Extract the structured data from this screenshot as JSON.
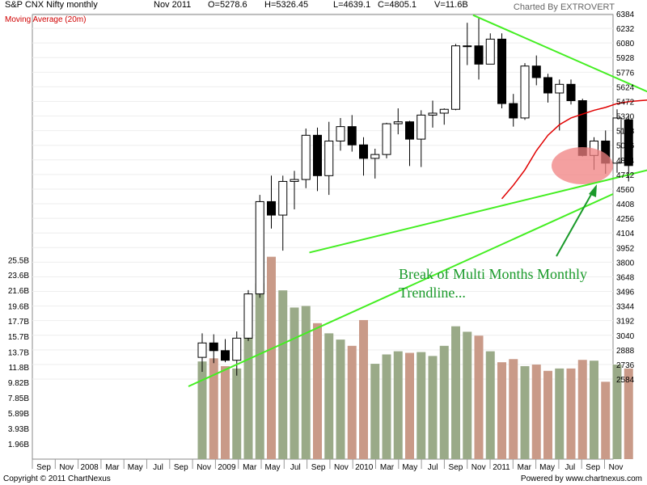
{
  "header": {
    "title": "S&P CNX Nifty monthly",
    "period": "Nov 2011",
    "open": "O=5278.6",
    "high": "H=5326.45",
    "low": "L=4639.1",
    "close": "C=4805.1",
    "volume": "V=11.6B",
    "charted_by": "Charted By EXTROVERT"
  },
  "indicator_label": "Moving Average (20m)",
  "annotation": {
    "line1": "Break of Multi Months Monthly",
    "line2": "Trendline..."
  },
  "footer": {
    "copyright": "Copyright © 2011 ChartNexus",
    "powered": "Powered by www.chartnexus.com"
  },
  "colors": {
    "up_candle": "#ffffff",
    "down_candle": "#000000",
    "moving_average": "#e00000",
    "trendline": "#44ee22",
    "volume_up": "#9aaa88",
    "volume_down": "#c99a88",
    "annotation": "#1a9a2a",
    "highlight": "#f08080"
  },
  "chart_data": {
    "type": "candlestick",
    "price_ticks": [
      "6384",
      "6232",
      "6080",
      "5928",
      "5776",
      "5624",
      "5472",
      "5320",
      "5168",
      "5016",
      "4864",
      "4712",
      "4560",
      "4408",
      "4256",
      "4104",
      "3952",
      "3800",
      "3648",
      "3496",
      "3344",
      "3192",
      "3040",
      "2888",
      "2736",
      "2584"
    ],
    "volume_ticks": [
      "25.5B",
      "23.6B",
      "21.6B",
      "19.6B",
      "17.7B",
      "15.7B",
      "13.7B",
      "11.8B",
      "9.82B",
      "7.85B",
      "5.89B",
      "3.93B",
      "1.96B"
    ],
    "x_labels": [
      "Sep",
      "Nov",
      "2008",
      "Mar",
      "May",
      "Jul",
      "Sep",
      "Nov",
      "2009",
      "Mar",
      "May",
      "Jul",
      "Sep",
      "Nov",
      "2010",
      "Mar",
      "May",
      "Jul",
      "Sep",
      "Nov",
      "2011",
      "Mar",
      "May",
      "Jul",
      "Sep",
      "Nov"
    ],
    "candles": [
      {
        "o": 2810,
        "h": 3060,
        "l": 2660,
        "c": 2960,
        "v": 12.5
      },
      {
        "o": 2960,
        "h": 3050,
        "l": 2750,
        "c": 2880,
        "v": 12.9
      },
      {
        "o": 2880,
        "h": 3000,
        "l": 2760,
        "c": 2780,
        "v": 11.9
      },
      {
        "o": 2780,
        "h": 3080,
        "l": 2620,
        "c": 3010,
        "v": 11.6
      },
      {
        "o": 3010,
        "h": 3510,
        "l": 2980,
        "c": 3470,
        "v": 16.0
      },
      {
        "o": 3470,
        "h": 4500,
        "l": 3430,
        "c": 4430,
        "v": 22.5
      },
      {
        "o": 4430,
        "h": 4700,
        "l": 4150,
        "c": 4290,
        "v": 25.9
      },
      {
        "o": 4290,
        "h": 4700,
        "l": 3920,
        "c": 4640,
        "v": 21.6
      },
      {
        "o": 4640,
        "h": 4750,
        "l": 4350,
        "c": 4660,
        "v": 19.4
      },
      {
        "o": 4660,
        "h": 5190,
        "l": 4570,
        "c": 5120,
        "v": 19.6
      },
      {
        "o": 5120,
        "h": 5200,
        "l": 4540,
        "c": 4700,
        "v": 17.4
      },
      {
        "o": 4700,
        "h": 5260,
        "l": 4500,
        "c": 5060,
        "v": 16.1
      },
      {
        "o": 5060,
        "h": 5300,
        "l": 4960,
        "c": 5210,
        "v": 15.3
      },
      {
        "o": 5210,
        "h": 5330,
        "l": 4950,
        "c": 5020,
        "v": 14.5
      },
      {
        "o": 5020,
        "h": 5100,
        "l": 4700,
        "c": 4880,
        "v": 17.8
      },
      {
        "o": 4880,
        "h": 4980,
        "l": 4670,
        "c": 4920,
        "v": 12.2
      },
      {
        "o": 4920,
        "h": 5250,
        "l": 4880,
        "c": 5240,
        "v": 13.4
      },
      {
        "o": 5240,
        "h": 5400,
        "l": 5130,
        "c": 5260,
        "v": 13.8
      },
      {
        "o": 5260,
        "h": 5270,
        "l": 4800,
        "c": 5080,
        "v": 13.6
      },
      {
        "o": 5080,
        "h": 5380,
        "l": 4790,
        "c": 5330,
        "v": 13.7
      },
      {
        "o": 5330,
        "h": 5480,
        "l": 5200,
        "c": 5350,
        "v": 13.2
      },
      {
        "o": 5350,
        "h": 5400,
        "l": 5230,
        "c": 5390,
        "v": 14.5
      },
      {
        "o": 5390,
        "h": 6070,
        "l": 5380,
        "c": 6050,
        "v": 17.0
      },
      {
        "o": 6050,
        "h": 6290,
        "l": 5850,
        "c": 6050,
        "v": 16.3
      },
      {
        "o": 6050,
        "h": 6340,
        "l": 5700,
        "c": 5860,
        "v": 15.8
      },
      {
        "o": 5860,
        "h": 6180,
        "l": 5870,
        "c": 6120,
        "v": 13.8
      },
      {
        "o": 6120,
        "h": 6180,
        "l": 5400,
        "c": 5450,
        "v": 12.4
      },
      {
        "o": 5450,
        "h": 5550,
        "l": 5210,
        "c": 5300,
        "v": 12.8
      },
      {
        "o": 5300,
        "h": 5870,
        "l": 5280,
        "c": 5840,
        "v": 11.9
      },
      {
        "o": 5840,
        "h": 5950,
        "l": 5640,
        "c": 5720,
        "v": 12.1
      },
      {
        "o": 5720,
        "h": 5760,
        "l": 5460,
        "c": 5560,
        "v": 11.3
      },
      {
        "o": 5560,
        "h": 5700,
        "l": 5170,
        "c": 5650,
        "v": 11.6
      },
      {
        "o": 5650,
        "h": 5700,
        "l": 5440,
        "c": 5480,
        "v": 11.6
      },
      {
        "o": 5480,
        "h": 5500,
        "l": 4900,
        "c": 4910,
        "v": 12.7
      },
      {
        "o": 4910,
        "h": 5100,
        "l": 4760,
        "c": 5060,
        "v": 12.6
      },
      {
        "o": 5060,
        "h": 5170,
        "l": 4720,
        "c": 4830,
        "v": 9.9
      },
      {
        "o": 4830,
        "h": 5390,
        "l": 4730,
        "c": 5300,
        "v": 12.1
      },
      {
        "o": 5280,
        "h": 5330,
        "l": 4640,
        "c": 4805,
        "v": 11.6
      }
    ],
    "moving_average_20m": [
      {
        "i": 26,
        "v": 4460
      },
      {
        "i": 27,
        "v": 4600
      },
      {
        "i": 28,
        "v": 4760
      },
      {
        "i": 29,
        "v": 4960
      },
      {
        "i": 30,
        "v": 5120
      },
      {
        "i": 31,
        "v": 5230
      },
      {
        "i": 32,
        "v": 5300
      },
      {
        "i": 33,
        "v": 5340
      },
      {
        "i": 34,
        "v": 5380
      },
      {
        "i": 35,
        "v": 5410
      },
      {
        "i": 36,
        "v": 5450
      },
      {
        "i": 37,
        "v": 5470
      },
      {
        "i": 38,
        "v": 5480
      },
      {
        "i": 39,
        "v": 5490
      },
      {
        "i": 40,
        "v": 5490
      },
      {
        "i": 41,
        "v": 5475
      }
    ],
    "trendlines": [
      {
        "name": "falling resistance",
        "from": {
          "i": 23.5,
          "v": 6370
        },
        "to": {
          "i": 42.5,
          "v": 5370
        }
      },
      {
        "name": "rising support",
        "from": {
          "i": 9.3,
          "v": 3900
        },
        "to": {
          "i": 42.5,
          "v": 4870
        }
      }
    ]
  }
}
